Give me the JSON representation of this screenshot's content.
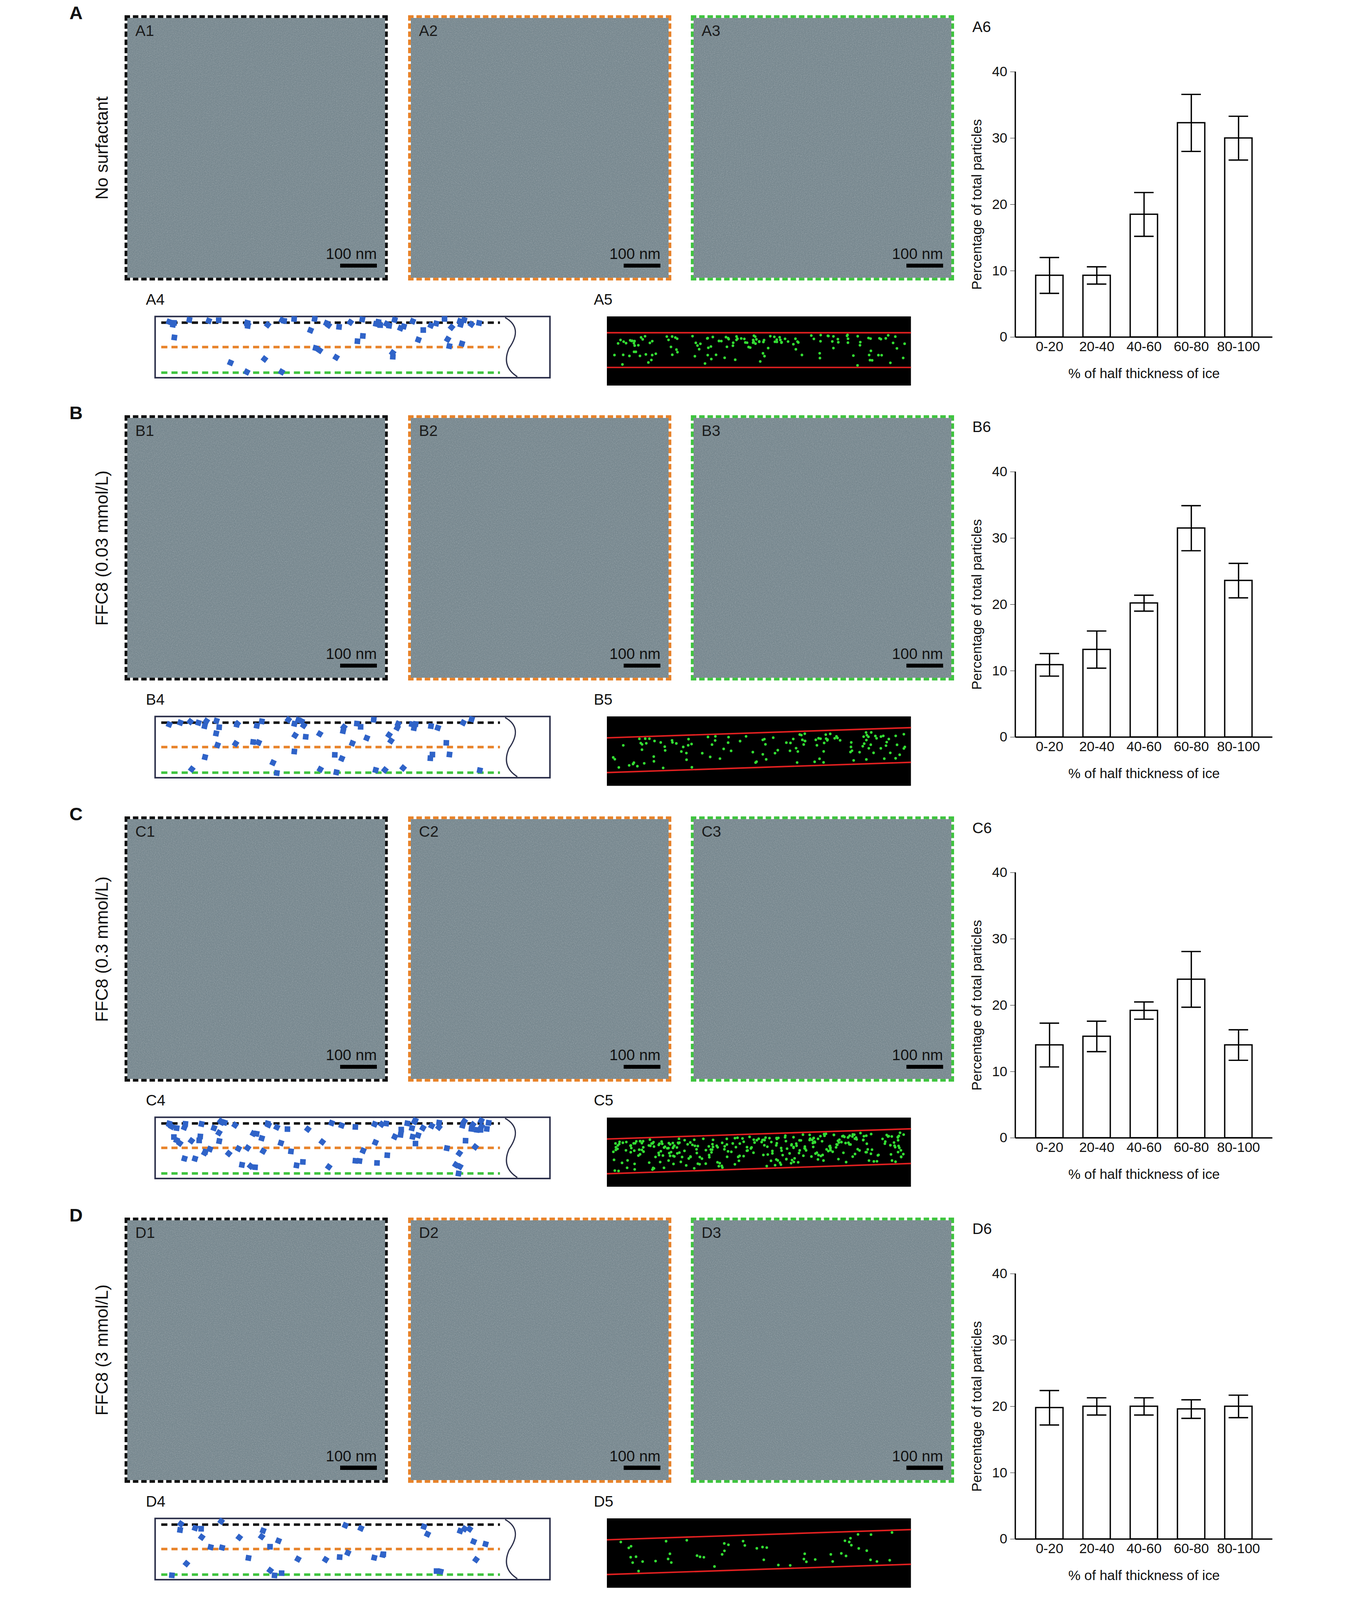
{
  "chart_data": [
    {
      "type": "bar",
      "title": "A6",
      "categories": [
        "0-20",
        "20-40",
        "40-60",
        "60-80",
        "80-100"
      ],
      "values": [
        9.3,
        9.3,
        18.5,
        32.3,
        30.0
      ],
      "errors": [
        2.7,
        1.3,
        3.3,
        4.3,
        3.3
      ],
      "color": "#ffffff",
      "ylim": [
        0,
        40
      ],
      "yticks": [
        0,
        10,
        20,
        30,
        40
      ],
      "ylabel": "Percentage of total particles",
      "xlabel": "% of half thickness of ice"
    },
    {
      "type": "bar",
      "title": "B6",
      "categories": [
        "0-20",
        "20-40",
        "40-60",
        "60-80",
        "80-100"
      ],
      "values": [
        10.9,
        13.2,
        20.2,
        31.5,
        23.6
      ],
      "errors": [
        1.7,
        2.8,
        1.2,
        3.4,
        2.6
      ],
      "color": "#ffffff",
      "ylim": [
        0,
        40
      ],
      "yticks": [
        0,
        10,
        20,
        30,
        40
      ],
      "ylabel": "Percentage of total particles",
      "xlabel": "% of half thickness of ice"
    },
    {
      "type": "bar",
      "title": "C6",
      "categories": [
        "0-20",
        "20-40",
        "40-60",
        "60-80",
        "80-100"
      ],
      "values": [
        14.0,
        15.3,
        19.2,
        23.9,
        14.0
      ],
      "errors": [
        3.3,
        2.3,
        1.3,
        4.2,
        2.3
      ],
      "color": "#ffffff",
      "ylim": [
        0,
        40
      ],
      "yticks": [
        0,
        10,
        20,
        30,
        40
      ],
      "ylabel": "Percentage of total particles",
      "xlabel": "% of half thickness of ice"
    },
    {
      "type": "bar",
      "title": "D6",
      "categories": [
        "0-20",
        "20-40",
        "40-60",
        "60-80",
        "80-100"
      ],
      "values": [
        19.8,
        20.0,
        20.0,
        19.6,
        20.0
      ],
      "errors": [
        2.6,
        1.3,
        1.3,
        1.4,
        1.7
      ],
      "color": "#ffffff",
      "ylim": [
        0,
        40
      ],
      "yticks": [
        0,
        10,
        20,
        30,
        40
      ],
      "ylabel": "Percentage of total particles",
      "xlabel": "% of half thickness of ice"
    }
  ],
  "figure": {
    "rows": [
      {
        "letter": "A",
        "label": "No surfactant",
        "images": [
          "A1",
          "A2",
          "A3"
        ],
        "schematic": "A4",
        "segmentation": "A5",
        "scale_bar": "100 nm"
      },
      {
        "letter": "B",
        "label": "FFC8 (0.03 mmol/L)",
        "images": [
          "B1",
          "B2",
          "B3"
        ],
        "schematic": "B4",
        "segmentation": "B5",
        "scale_bar": "100 nm"
      },
      {
        "letter": "C",
        "label": "FFC8 (0.3 mmol/L)",
        "images": [
          "C1",
          "C2",
          "C3"
        ],
        "schematic": "C4",
        "segmentation": "C5",
        "scale_bar": "100 nm"
      },
      {
        "letter": "D",
        "label": "FFC8 (3 mmol/L)",
        "images": [
          "D1",
          "D2",
          "D3"
        ],
        "schematic": "D4",
        "segmentation": "D5",
        "scale_bar": "100 nm"
      }
    ]
  }
}
